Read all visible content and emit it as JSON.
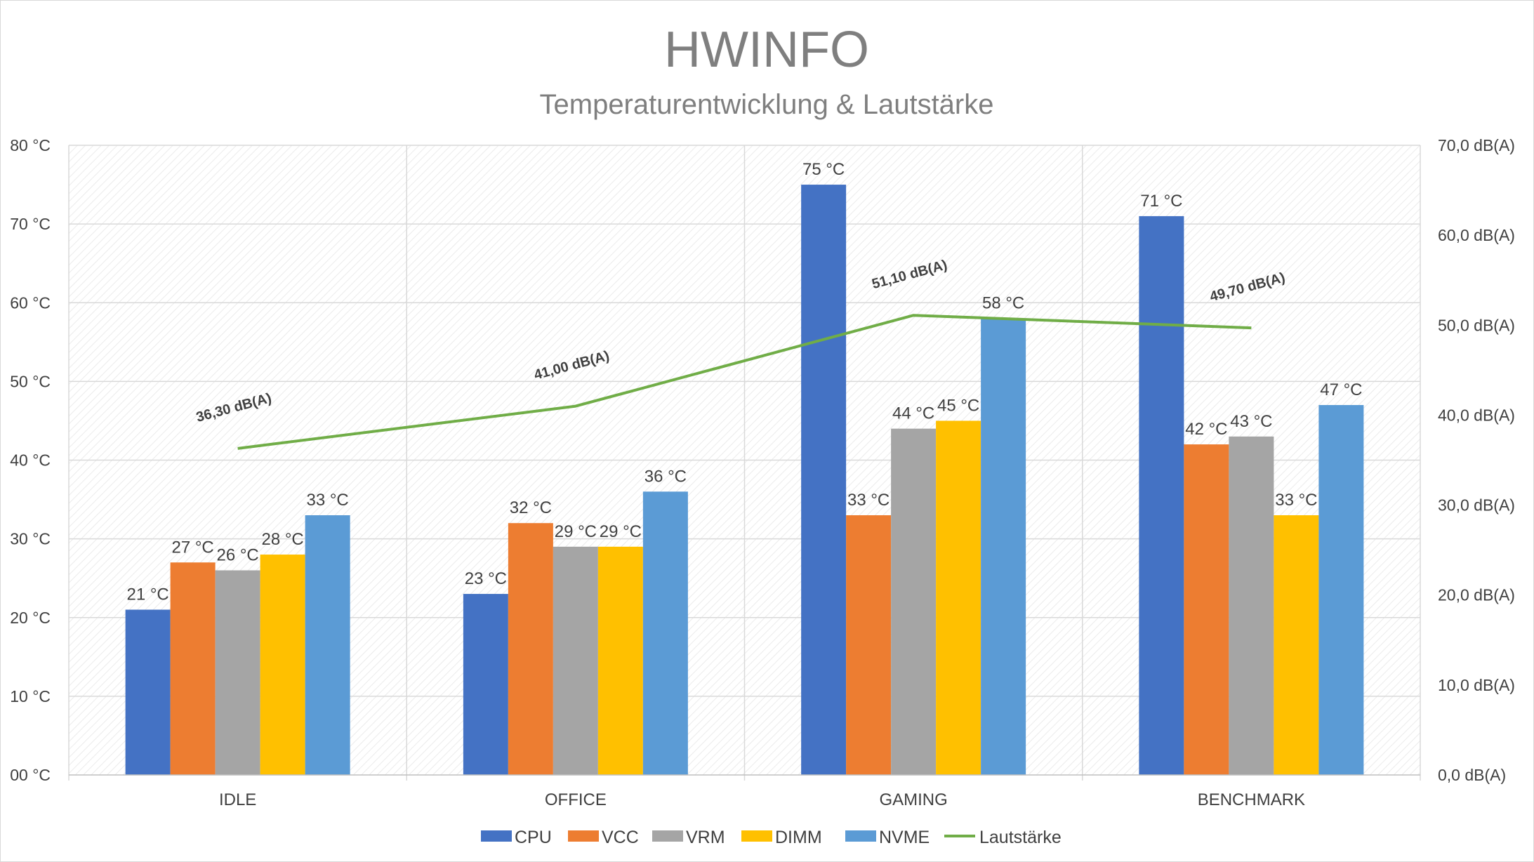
{
  "chart_data": {
    "type": "bar",
    "title": "HWINFO",
    "subtitle": "Temperaturentwicklung & Lautstärke",
    "categories": [
      "IDLE",
      "OFFICE",
      "GAMING",
      "BENCHMARK"
    ],
    "series": [
      {
        "name": "CPU",
        "color": "#4472c4",
        "values": [
          21,
          23,
          75,
          71
        ],
        "labels": [
          "21 °C",
          "23 °C",
          "75 °C",
          "71 °C"
        ]
      },
      {
        "name": "VCC",
        "color": "#ed7d31",
        "values": [
          27,
          32,
          33,
          42
        ],
        "labels": [
          "27 °C",
          "32 °C",
          "33 °C",
          "42 °C"
        ]
      },
      {
        "name": "VRM",
        "color": "#a5a5a5",
        "values": [
          26,
          29,
          44,
          43
        ],
        "labels": [
          "26 °C",
          "29 °C",
          "44 °C",
          "43 °C"
        ]
      },
      {
        "name": "DIMM",
        "color": "#ffc000",
        "values": [
          28,
          29,
          45,
          33
        ],
        "labels": [
          "28 °C",
          "29 °C",
          "45 °C",
          "33 °C"
        ]
      },
      {
        "name": "NVME",
        "color": "#5b9bd5",
        "values": [
          33,
          36,
          58,
          47
        ],
        "labels": [
          "33 °C",
          "36 °C",
          "58 °C",
          "47 °C"
        ]
      }
    ],
    "line_series": {
      "name": "Lautstärke",
      "color": "#70ad47",
      "axis": "secondary",
      "values": [
        36.3,
        41.0,
        51.1,
        49.7
      ],
      "labels": [
        "36,30 dB(A)",
        "41,00 dB(A)",
        "51,10 dB(A)",
        "49,70 dB(A)"
      ]
    },
    "y_primary": {
      "ylim": [
        0,
        80
      ],
      "ticks": [
        0,
        10,
        20,
        30,
        40,
        50,
        60,
        70,
        80
      ],
      "tick_labels": [
        "00 °C",
        "10 °C",
        "20 °C",
        "30 °C",
        "40 °C",
        "50 °C",
        "60 °C",
        "70 °C",
        "80 °C"
      ]
    },
    "y_secondary": {
      "ylim": [
        0,
        70
      ],
      "ticks": [
        0,
        10,
        20,
        30,
        40,
        50,
        60,
        70
      ],
      "tick_labels": [
        "0,0  dB(A)",
        "10,0  dB(A)",
        "20,0  dB(A)",
        "30,0  dB(A)",
        "40,0  dB(A)",
        "50,0  dB(A)",
        "60,0  dB(A)",
        "70,0  dB(A)"
      ]
    },
    "grid": true,
    "legend_position": "bottom"
  }
}
